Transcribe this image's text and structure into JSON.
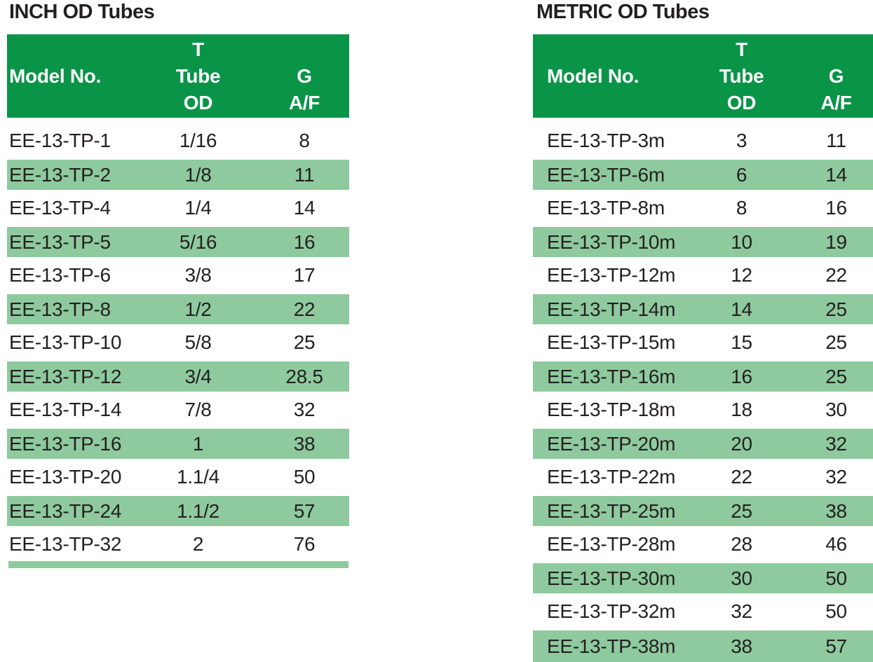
{
  "colors": {
    "header_green": "#0a9447",
    "shaded_row_green": "#8eca9e",
    "text_dark": "#231f20",
    "header_text": "#ffffff",
    "background": "#ffffff"
  },
  "tables": [
    {
      "id": "inch",
      "title": "INCH OD Tubes",
      "header": {
        "model_label": "Model No.",
        "tube_lines": [
          "T",
          "Tube",
          "OD"
        ],
        "g_lines": [
          "G",
          "A/F"
        ]
      },
      "has_footer_bar": true,
      "rows": [
        {
          "model": "EE-13-TP-1",
          "tube_od": "1/16",
          "g_af": "8",
          "shaded": false
        },
        {
          "model": "EE-13-TP-2",
          "tube_od": "1/8",
          "g_af": "11",
          "shaded": true
        },
        {
          "model": "EE-13-TP-4",
          "tube_od": "1/4",
          "g_af": "14",
          "shaded": false
        },
        {
          "model": "EE-13-TP-5",
          "tube_od": "5/16",
          "g_af": "16",
          "shaded": true
        },
        {
          "model": "EE-13-TP-6",
          "tube_od": "3/8",
          "g_af": "17",
          "shaded": false
        },
        {
          "model": "EE-13-TP-8",
          "tube_od": "1/2",
          "g_af": "22",
          "shaded": true
        },
        {
          "model": "EE-13-TP-10",
          "tube_od": "5/8",
          "g_af": "25",
          "shaded": false
        },
        {
          "model": "EE-13-TP-12",
          "tube_od": "3/4",
          "g_af": "28.5",
          "shaded": true
        },
        {
          "model": "EE-13-TP-14",
          "tube_od": "7/8",
          "g_af": "32",
          "shaded": false
        },
        {
          "model": "EE-13-TP-16",
          "tube_od": "1",
          "g_af": "38",
          "shaded": true
        },
        {
          "model": "EE-13-TP-20",
          "tube_od": "1.1/4",
          "g_af": "50",
          "shaded": false
        },
        {
          "model": "EE-13-TP-24",
          "tube_od": "1.1/2",
          "g_af": "57",
          "shaded": true
        },
        {
          "model": "EE-13-TP-32",
          "tube_od": "2",
          "g_af": "76",
          "shaded": false
        }
      ]
    },
    {
      "id": "metric",
      "title": "METRIC OD Tubes",
      "header": {
        "model_label": "Model No.",
        "tube_lines": [
          "T",
          "Tube",
          "OD"
        ],
        "g_lines": [
          "G",
          "A/F"
        ]
      },
      "has_footer_bar": false,
      "rows": [
        {
          "model": "EE-13-TP-3m",
          "tube_od": "3",
          "g_af": "11",
          "shaded": false
        },
        {
          "model": "EE-13-TP-6m",
          "tube_od": "6",
          "g_af": "14",
          "shaded": true
        },
        {
          "model": "EE-13-TP-8m",
          "tube_od": "8",
          "g_af": "16",
          "shaded": false
        },
        {
          "model": "EE-13-TP-10m",
          "tube_od": "10",
          "g_af": "19",
          "shaded": true
        },
        {
          "model": "EE-13-TP-12m",
          "tube_od": "12",
          "g_af": "22",
          "shaded": false
        },
        {
          "model": "EE-13-TP-14m",
          "tube_od": "14",
          "g_af": "25",
          "shaded": true
        },
        {
          "model": "EE-13-TP-15m",
          "tube_od": "15",
          "g_af": "25",
          "shaded": false
        },
        {
          "model": "EE-13-TP-16m",
          "tube_od": "16",
          "g_af": "25",
          "shaded": true
        },
        {
          "model": "EE-13-TP-18m",
          "tube_od": "18",
          "g_af": "30",
          "shaded": false
        },
        {
          "model": "EE-13-TP-20m",
          "tube_od": "20",
          "g_af": "32",
          "shaded": true
        },
        {
          "model": "EE-13-TP-22m",
          "tube_od": "22",
          "g_af": "32",
          "shaded": false
        },
        {
          "model": "EE-13-TP-25m",
          "tube_od": "25",
          "g_af": "38",
          "shaded": true
        },
        {
          "model": "EE-13-TP-28m",
          "tube_od": "28",
          "g_af": "46",
          "shaded": false
        },
        {
          "model": "EE-13-TP-30m",
          "tube_od": "30",
          "g_af": "50",
          "shaded": true
        },
        {
          "model": "EE-13-TP-32m",
          "tube_od": "32",
          "g_af": "50",
          "shaded": false
        },
        {
          "model": "EE-13-TP-38m",
          "tube_od": "38",
          "g_af": "57",
          "shaded": true
        }
      ]
    }
  ]
}
